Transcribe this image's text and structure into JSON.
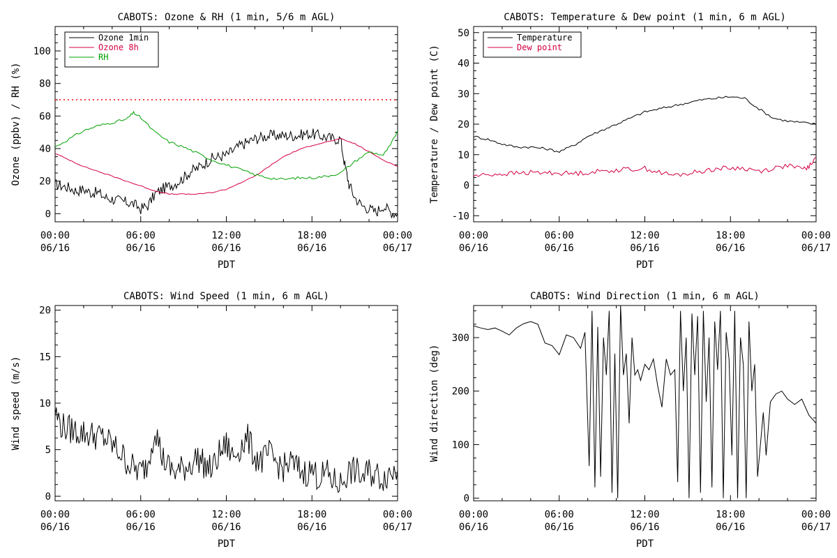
{
  "chart_data": [
    {
      "type": "line",
      "title": "CABOTS: Ozone & RH (1 min, 5/6 m AGL)",
      "xlabel": "PDT",
      "ylabel": "Ozone (ppbv) / RH (%)",
      "ylim": [
        -5,
        115
      ],
      "yticks": [
        0,
        20,
        40,
        60,
        80,
        100
      ],
      "xticks": [
        "00:00\n06/16",
        "06:00\n06/16",
        "12:00\n06/16",
        "18:00\n06/16",
        "00:00\n06/17"
      ],
      "xlim_hours": [
        0,
        24
      ],
      "reference_line": {
        "y": 70,
        "color": "#ff0000",
        "style": "dotted"
      },
      "legend": {
        "placement": "top-left",
        "entries": [
          "Ozone 1min",
          "Ozone 8h",
          "RH"
        ]
      },
      "series": [
        {
          "name": "Ozone 1min",
          "color": "#000000",
          "x": [
            0,
            0.5,
            1,
            1.5,
            2,
            2.5,
            3,
            3.5,
            4,
            4.5,
            5,
            5.5,
            6,
            6.5,
            7,
            7.5,
            8,
            8.5,
            9,
            9.5,
            10,
            10.5,
            11,
            11.5,
            12,
            12.5,
            13,
            13.5,
            14,
            14.5,
            15,
            15.5,
            16,
            16.5,
            17,
            17.5,
            18,
            18.5,
            19,
            19.5,
            20,
            20.3,
            20.6,
            21,
            21.5,
            22,
            22.5,
            23,
            23.5,
            24
          ],
          "y": [
            18,
            17,
            16,
            14,
            15,
            13,
            13,
            10,
            9,
            8,
            7,
            6,
            3,
            5,
            12,
            15,
            17,
            19,
            22,
            26,
            28,
            31,
            34,
            35,
            36,
            39,
            42,
            44,
            46,
            47,
            48,
            48,
            48,
            48,
            48,
            49,
            49,
            48,
            47,
            46,
            46,
            30,
            18,
            10,
            5,
            3,
            1,
            5,
            1,
            0
          ]
        },
        {
          "name": "Ozone 8h",
          "color": "#d40040",
          "x": [
            0,
            1,
            2,
            3,
            4,
            5,
            6,
            7,
            8,
            9,
            10,
            11,
            12,
            13,
            14,
            15,
            16,
            17,
            18,
            19,
            20,
            21,
            22,
            23,
            24
          ],
          "y": [
            37,
            33,
            29,
            26,
            23,
            20,
            17,
            14,
            12,
            12,
            12,
            13,
            15,
            19,
            23,
            29,
            35,
            39,
            42,
            44,
            46,
            43,
            38,
            33,
            29
          ]
        },
        {
          "name": "RH",
          "color": "#00a000",
          "x": [
            0,
            1,
            2,
            3,
            4,
            5,
            5.5,
            6,
            7,
            8,
            9,
            10,
            11,
            12,
            13,
            14,
            15,
            16,
            17,
            18,
            19,
            20,
            21,
            22,
            23,
            23.5,
            24
          ],
          "y": [
            41,
            46,
            51,
            54,
            56,
            58,
            62,
            59,
            50,
            44,
            41,
            37,
            33,
            30,
            27,
            24,
            22,
            21,
            22,
            22,
            23,
            25,
            32,
            38,
            36,
            42,
            51
          ]
        }
      ]
    },
    {
      "type": "line",
      "title": "CABOTS: Temperature & Dew point (1 min, 6 m AGL)",
      "xlabel": "PDT",
      "ylabel": "Temperature / Dew point (C)",
      "ylim": [
        -12,
        52
      ],
      "yticks": [
        -10,
        0,
        10,
        20,
        30,
        40,
        50
      ],
      "xticks": [
        "00:00\n06/16",
        "06:00\n06/16",
        "12:00\n06/16",
        "18:00\n06/16",
        "00:00\n06/17"
      ],
      "xlim_hours": [
        0,
        24
      ],
      "legend": {
        "placement": "top-left",
        "entries": [
          "Temperature",
          "Dew point"
        ]
      },
      "series": [
        {
          "name": "Temperature",
          "color": "#000000",
          "x": [
            0,
            1,
            2,
            3,
            4,
            5,
            6,
            7,
            8,
            9,
            10,
            11,
            12,
            13,
            14,
            15,
            16,
            17,
            18,
            19,
            20,
            21,
            22,
            23,
            24
          ],
          "y": [
            16,
            15,
            13.5,
            12.5,
            12.5,
            12,
            11,
            13,
            16,
            18,
            20,
            22,
            24,
            25,
            26,
            27,
            28,
            28.5,
            29,
            28.5,
            25,
            22,
            21,
            20.5,
            20
          ]
        },
        {
          "name": "Dew point",
          "color": "#d40040",
          "x": [
            0,
            1,
            2,
            3,
            4,
            5,
            6,
            7,
            8,
            9,
            10,
            11,
            12,
            13,
            14,
            15,
            16,
            17,
            18,
            19,
            20,
            21,
            22,
            23,
            23.5,
            24
          ],
          "y": [
            3,
            3.5,
            3.7,
            3.9,
            4.1,
            4.1,
            4,
            3.8,
            4.2,
            4.6,
            5,
            5.2,
            5.5,
            4.2,
            3.2,
            3.8,
            4.6,
            5.4,
            5.6,
            5.5,
            4.6,
            5.5,
            6.5,
            5.2,
            6,
            9
          ]
        }
      ]
    },
    {
      "type": "line",
      "title": "CABOTS: Wind Speed (1 min, 6 m AGL)",
      "xlabel": "PDT",
      "ylabel": "Wind speed (m/s)",
      "ylim": [
        -0.5,
        20.5
      ],
      "yticks": [
        0,
        5,
        10,
        15,
        20
      ],
      "xticks": [
        "00:00\n06/16",
        "06:00\n06/16",
        "12:00\n06/16",
        "18:00\n06/16",
        "00:00\n06/17"
      ],
      "xlim_hours": [
        0,
        24
      ],
      "series": [
        {
          "color": "#000000",
          "x": [
            0,
            0.5,
            1,
            1.5,
            2,
            2.5,
            3,
            3.5,
            4,
            4.5,
            5,
            5.5,
            6,
            6.5,
            7,
            7.5,
            8,
            8.5,
            9,
            9.5,
            10,
            10.5,
            11,
            11.5,
            12,
            12.5,
            13,
            13.5,
            14,
            14.5,
            15,
            15.5,
            16,
            16.5,
            17,
            17.5,
            18,
            18.5,
            19,
            19.5,
            20,
            20.5,
            21,
            21.5,
            22,
            22.5,
            23,
            23.5,
            24
          ],
          "y": [
            9,
            7.5,
            7.2,
            7,
            6.8,
            6.6,
            6.5,
            6.2,
            5.5,
            4.8,
            3.8,
            3,
            2.6,
            3.5,
            7.5,
            4.2,
            3,
            2.6,
            3,
            3.5,
            4.2,
            3.3,
            2.8,
            4.5,
            5.5,
            4.2,
            5.4,
            6.2,
            4.2,
            3.8,
            4.5,
            3.6,
            3,
            3.6,
            3,
            2.5,
            2.8,
            2,
            2.5,
            1.6,
            1.3,
            2.5,
            2.8,
            2,
            2.6,
            2.3,
            2,
            2.6,
            2.8
          ]
        }
      ]
    },
    {
      "type": "line",
      "title": "CABOTS: Wind Direction (1 min, 6 m AGL)",
      "xlabel": "PDT",
      "ylabel": "Wind direction (deg)",
      "ylim": [
        -5,
        360
      ],
      "yticks": [
        0,
        100,
        200,
        300
      ],
      "xticks": [
        "00:00\n06/16",
        "06:00\n06/16",
        "12:00\n06/16",
        "18:00\n06/16",
        "00:00\n06/17"
      ],
      "xlim_hours": [
        0,
        24
      ],
      "series": [
        {
          "color": "#000000",
          "x": [
            0,
            0.5,
            1,
            1.5,
            2,
            2.5,
            3,
            3.5,
            4,
            4.5,
            5,
            5.5,
            6,
            6.5,
            7,
            7.5,
            7.8,
            8.1,
            8.3,
            8.5,
            8.7,
            8.9,
            9.1,
            9.3,
            9.5,
            9.7,
            9.9,
            10.1,
            10.3,
            10.5,
            10.7,
            10.9,
            11.1,
            11.3,
            11.5,
            11.7,
            12,
            12.3,
            12.6,
            12.9,
            13.2,
            13.5,
            13.8,
            14.1,
            14.3,
            14.5,
            14.7,
            14.9,
            15.1,
            15.3,
            15.5,
            15.7,
            15.9,
            16.1,
            16.3,
            16.5,
            16.7,
            16.9,
            17.1,
            17.3,
            17.5,
            17.7,
            17.9,
            18.1,
            18.3,
            18.5,
            18.7,
            18.9,
            19.1,
            19.3,
            19.5,
            19.7,
            19.9,
            20.1,
            20.3,
            20.5,
            20.8,
            21.2,
            21.6,
            22,
            22.5,
            23,
            23.5,
            24
          ],
          "y": [
            322,
            318,
            315,
            318,
            312,
            305,
            318,
            326,
            330,
            325,
            290,
            285,
            268,
            305,
            300,
            280,
            310,
            60,
            350,
            20,
            320,
            40,
            300,
            230,
            350,
            10,
            270,
            0,
            360,
            230,
            270,
            140,
            300,
            230,
            240,
            220,
            250,
            240,
            260,
            210,
            170,
            260,
            230,
            240,
            30,
            350,
            200,
            300,
            0,
            345,
            230,
            340,
            10,
            350,
            180,
            300,
            20,
            330,
            240,
            350,
            0,
            310,
            260,
            80,
            350,
            0,
            300,
            250,
            0,
            330,
            200,
            250,
            40,
            100,
            160,
            80,
            180,
            195,
            200,
            185,
            175,
            185,
            155,
            140
          ]
        }
      ]
    }
  ]
}
